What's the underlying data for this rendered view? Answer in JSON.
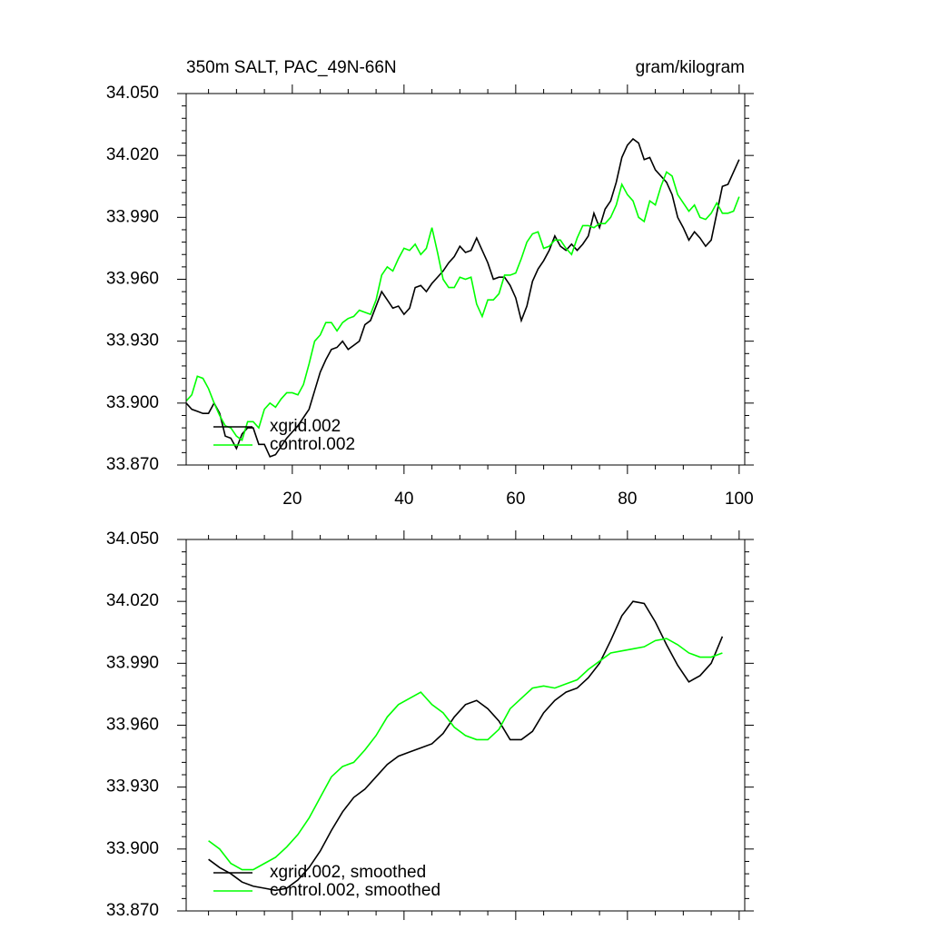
{
  "chart_data": [
    {
      "type": "line",
      "title": "350m SALT, PAC_49N-66N",
      "units_label": "gram/kilogram",
      "x": [
        1,
        2,
        3,
        4,
        5,
        6,
        7,
        8,
        9,
        10,
        11,
        12,
        13,
        14,
        15,
        16,
        17,
        18,
        19,
        20,
        21,
        22,
        23,
        24,
        25,
        26,
        27,
        28,
        29,
        30,
        31,
        32,
        33,
        34,
        35,
        36,
        37,
        38,
        39,
        40,
        41,
        42,
        43,
        44,
        45,
        46,
        47,
        48,
        49,
        50,
        51,
        52,
        53,
        54,
        55,
        56,
        57,
        58,
        59,
        60,
        61,
        62,
        63,
        64,
        65,
        66,
        67,
        68,
        69,
        70,
        71,
        72,
        73,
        74,
        75,
        76,
        77,
        78,
        79,
        80,
        81,
        82,
        83,
        84,
        85,
        86,
        87,
        88,
        89,
        90,
        91,
        92,
        93,
        94,
        95,
        96,
        97,
        98,
        99,
        100
      ],
      "series": [
        {
          "name": "xgrid.002",
          "color": "#000000",
          "values": [
            33.9,
            33.897,
            33.896,
            33.895,
            33.895,
            33.9,
            33.895,
            33.884,
            33.883,
            33.878,
            33.885,
            33.888,
            33.888,
            33.88,
            33.88,
            33.874,
            33.875,
            33.879,
            33.883,
            33.886,
            33.889,
            33.893,
            33.897,
            33.906,
            33.915,
            33.921,
            33.926,
            33.927,
            33.93,
            33.926,
            33.928,
            33.93,
            33.938,
            33.94,
            33.947,
            33.954,
            33.95,
            33.946,
            33.947,
            33.943,
            33.946,
            33.956,
            33.957,
            33.954,
            33.958,
            33.961,
            33.964,
            33.968,
            33.971,
            33.976,
            33.973,
            33.974,
            33.98,
            33.974,
            33.968,
            33.96,
            33.961,
            33.961,
            33.957,
            33.951,
            33.94,
            33.947,
            33.959,
            33.965,
            33.969,
            33.974,
            33.981,
            33.976,
            33.974,
            33.977,
            33.974,
            33.977,
            33.981,
            33.992,
            33.985,
            33.994,
            33.998,
            34.007,
            34.019,
            34.025,
            34.028,
            34.026,
            34.018,
            34.019,
            34.013,
            34.01,
            34.007,
            34.001,
            33.99,
            33.985,
            33.979,
            33.983,
            33.98,
            33.976,
            33.979,
            33.992,
            34.005,
            34.006,
            34.012,
            34.018
          ]
        },
        {
          "name": "control.002",
          "color": "#00ff00",
          "values": [
            33.901,
            33.904,
            33.913,
            33.912,
            33.907,
            33.9,
            33.894,
            33.889,
            33.888,
            33.884,
            33.882,
            33.891,
            33.891,
            33.888,
            33.897,
            33.9,
            33.898,
            33.902,
            33.905,
            33.905,
            33.904,
            33.909,
            33.919,
            33.93,
            33.933,
            33.939,
            33.939,
            33.935,
            33.939,
            33.941,
            33.942,
            33.945,
            33.944,
            33.943,
            33.95,
            33.962,
            33.966,
            33.964,
            33.97,
            33.975,
            33.974,
            33.977,
            33.972,
            33.975,
            33.985,
            33.973,
            33.96,
            33.956,
            33.956,
            33.961,
            33.96,
            33.961,
            33.948,
            33.942,
            33.95,
            33.95,
            33.953,
            33.962,
            33.962,
            33.963,
            33.97,
            33.978,
            33.982,
            33.983,
            33.975,
            33.976,
            33.979,
            33.979,
            33.975,
            33.972,
            33.98,
            33.986,
            33.986,
            33.985,
            33.987,
            33.987,
            33.99,
            33.996,
            34.006,
            34.001,
            33.998,
            33.99,
            33.988,
            33.998,
            33.996,
            34.005,
            34.012,
            34.01,
            34.001,
            33.997,
            33.993,
            33.996,
            33.99,
            33.989,
            33.992,
            33.997,
            33.992,
            33.992,
            33.993,
            34.0
          ]
        }
      ],
      "xlim": [
        1,
        101
      ],
      "ylim": [
        33.87,
        34.05
      ],
      "xticks": [
        20,
        40,
        60,
        80,
        100
      ],
      "xtick_labels": true,
      "yticks": [
        {
          "value": 33.87,
          "label": "33.870"
        },
        {
          "value": 33.9,
          "label": "33.900"
        },
        {
          "value": 33.93,
          "label": "33.930"
        },
        {
          "value": 33.96,
          "label": "33.960"
        },
        {
          "value": 33.99,
          "label": "33.990"
        },
        {
          "value": 34.02,
          "label": "34.020"
        },
        {
          "value": 34.05,
          "label": "34.050"
        }
      ],
      "legend": "lower left"
    },
    {
      "type": "line",
      "x": [
        5,
        7,
        9,
        11,
        13,
        15,
        17,
        19,
        21,
        23,
        25,
        27,
        29,
        31,
        33,
        35,
        37,
        39,
        41,
        43,
        45,
        47,
        49,
        51,
        53,
        55,
        57,
        59,
        61,
        63,
        65,
        67,
        69,
        71,
        73,
        75,
        77,
        79,
        81,
        83,
        85,
        87,
        89,
        91,
        93,
        95,
        97
      ],
      "series": [
        {
          "name": "xgrid.002, smoothed",
          "color": "#000000",
          "values": [
            33.895,
            33.891,
            33.888,
            33.884,
            33.882,
            33.881,
            33.88,
            33.881,
            33.885,
            33.891,
            33.899,
            33.909,
            33.918,
            33.925,
            33.929,
            33.935,
            33.941,
            33.945,
            33.947,
            33.949,
            33.951,
            33.956,
            33.964,
            33.97,
            33.972,
            33.968,
            33.962,
            33.953,
            33.953,
            33.957,
            33.966,
            33.972,
            33.976,
            33.978,
            33.983,
            33.99,
            34.001,
            34.013,
            34.02,
            34.019,
            34.01,
            33.999,
            33.989,
            33.981,
            33.984,
            33.99,
            34.003
          ]
        },
        {
          "name": "control.002, smoothed",
          "color": "#00ff00",
          "values": [
            33.904,
            33.9,
            33.893,
            33.89,
            33.89,
            33.893,
            33.896,
            33.901,
            33.907,
            33.915,
            33.925,
            33.935,
            33.94,
            33.942,
            33.948,
            33.955,
            33.964,
            33.97,
            33.973,
            33.976,
            33.97,
            33.966,
            33.959,
            33.955,
            33.953,
            33.953,
            33.958,
            33.968,
            33.973,
            33.978,
            33.979,
            33.978,
            33.98,
            33.982,
            33.987,
            33.991,
            33.995,
            33.996,
            33.997,
            33.998,
            34.001,
            34.002,
            33.999,
            33.995,
            33.993,
            33.993,
            33.995
          ]
        }
      ],
      "xlim": [
        1,
        101
      ],
      "ylim": [
        33.87,
        34.05
      ],
      "xticks": [
        20,
        40,
        60,
        80,
        100
      ],
      "xtick_labels": false,
      "yticks": [
        {
          "value": 33.87,
          "label": "33.870"
        },
        {
          "value": 33.9,
          "label": "33.900"
        },
        {
          "value": 33.93,
          "label": "33.930"
        },
        {
          "value": 33.96,
          "label": "33.960"
        },
        {
          "value": 33.99,
          "label": "33.990"
        },
        {
          "value": 34.02,
          "label": "34.020"
        },
        {
          "value": 34.05,
          "label": "34.050"
        }
      ],
      "legend": "lower left"
    }
  ]
}
